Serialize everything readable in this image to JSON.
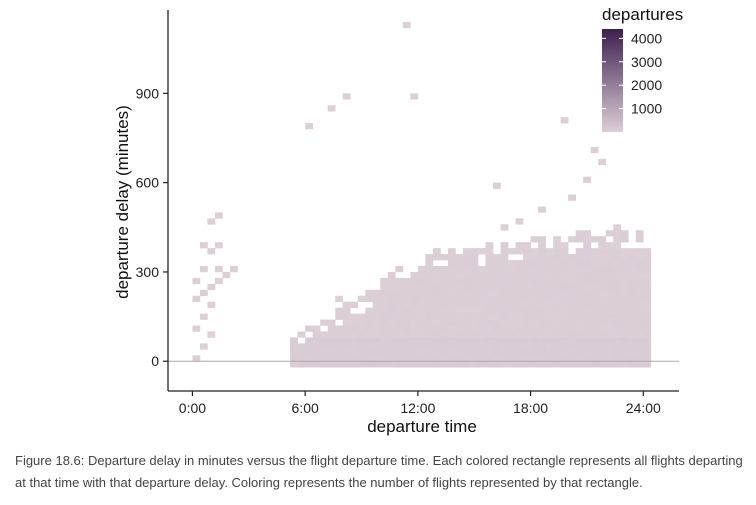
{
  "chart_data": {
    "type": "heatmap",
    "xlabel": "departure time",
    "ylabel": "departure delay (minutes)",
    "x_ticks": [
      {
        "value": 0,
        "label": "0:00"
      },
      {
        "value": 6,
        "label": "6:00"
      },
      {
        "value": 12,
        "label": "12:00"
      },
      {
        "value": 18,
        "label": "18:00"
      },
      {
        "value": 24,
        "label": "24:00"
      }
    ],
    "y_ticks": [
      {
        "value": 0,
        "label": "0"
      },
      {
        "value": 300,
        "label": "300"
      },
      {
        "value": 600,
        "label": "600"
      },
      {
        "value": 900,
        "label": "900"
      }
    ],
    "xlim": [
      -1.3,
      25.9
    ],
    "ylim": [
      -100,
      1180
    ],
    "bin_width_hours": 0.4,
    "bin_height_minutes": 20,
    "reference_line_y": 0,
    "grid": false,
    "legend": {
      "title": "departures",
      "placement": "top-right",
      "breaks": [
        4000,
        3000,
        2000,
        1000
      ],
      "range": [
        1,
        4400
      ],
      "colors": [
        "#dccfd6",
        "#3d1f4e"
      ]
    },
    "cell_groups": [
      {
        "label": "early-morning-cluster",
        "x_range": [
          0,
          2.4
        ],
        "y_range": [
          0,
          500
        ],
        "count": 1
      },
      {
        "label": "daytime-band",
        "x_range": [
          5.2,
          24
        ],
        "y_range": [
          -20,
          440
        ],
        "count": 30
      },
      {
        "label": "on-time-row",
        "x_range": [
          4.8,
          24
        ],
        "y_range": [
          -20,
          20
        ],
        "count": 3500
      },
      {
        "label": "sparse-high-delays",
        "x_range": [
          6,
          23
        ],
        "y_range": [
          460,
          1120
        ],
        "count": 1
      }
    ]
  },
  "caption": "Figure 18.6: Departure delay in minutes versus the flight departure time. Each colored rectangle represents all flights departing at that time with that departure delay. Coloring represents the number of flights represented by that rectangle."
}
